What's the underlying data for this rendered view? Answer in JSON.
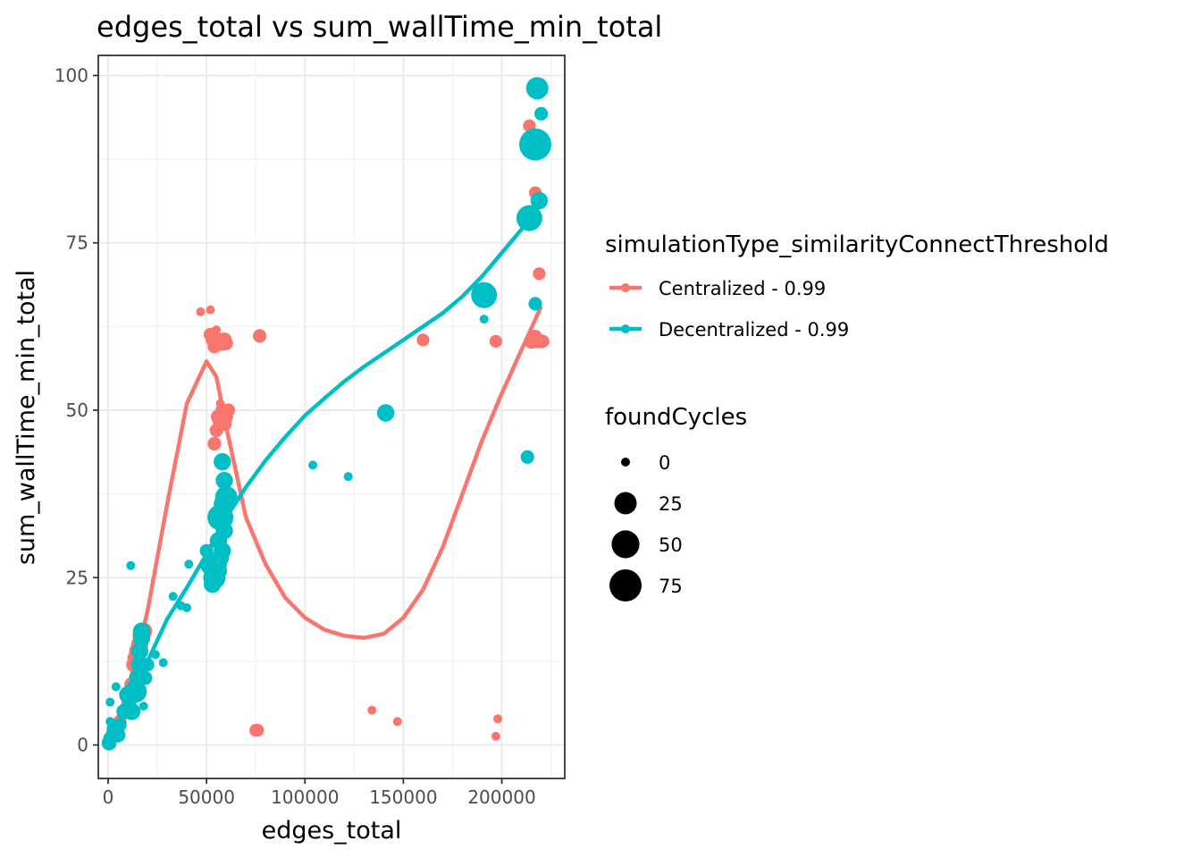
{
  "chart_data": {
    "type": "scatter",
    "title": "edges_total  vs  sum_wallTime_min_total",
    "xlabel": "edges_total",
    "ylabel": "sum_wallTime_min_total",
    "xlim": [
      -5000,
      232000
    ],
    "ylim": [
      -5,
      103
    ],
    "x_ticks": [
      0,
      50000,
      100000,
      150000,
      200000
    ],
    "x_tick_labels": [
      "0",
      "50000",
      "100000",
      "150000",
      "200000"
    ],
    "y_ticks": [
      0,
      25,
      50,
      75,
      100
    ],
    "y_tick_labels": [
      "0",
      "25",
      "50",
      "75",
      "100"
    ],
    "grid": true,
    "legend_placement": "right",
    "color_legend": {
      "title": "simulationType_similarityConnectThreshold",
      "entries": [
        {
          "label": "Centralized - 0.99",
          "color": "#F8766D"
        },
        {
          "label": "Decentralized - 0.99",
          "color": "#00BFC4"
        }
      ]
    },
    "size_legend": {
      "title": "foundCycles",
      "entries": [
        {
          "label": "0",
          "value": 0
        },
        {
          "label": "25",
          "value": 25
        },
        {
          "label": "50",
          "value": 50
        },
        {
          "label": "75",
          "value": 75
        }
      ]
    },
    "series": [
      {
        "name": "Centralized - 0.99",
        "color": "#F8766D",
        "points": [
          [
            500,
            0.5,
            0
          ],
          [
            2000,
            1.5,
            2
          ],
          [
            4000,
            2.5,
            3
          ],
          [
            6000,
            3.5,
            3
          ],
          [
            8000,
            5,
            4
          ],
          [
            10000,
            7,
            4
          ],
          [
            12000,
            9,
            5
          ],
          [
            13000,
            12,
            5
          ],
          [
            14000,
            13,
            8
          ],
          [
            15000,
            14,
            10
          ],
          [
            16000,
            15,
            10
          ],
          [
            17000,
            16.5,
            12
          ],
          [
            18000,
            17,
            10
          ],
          [
            47000,
            64.7,
            0
          ],
          [
            52000,
            65,
            0
          ],
          [
            52000,
            61.3,
            3
          ],
          [
            53000,
            60.5,
            3
          ],
          [
            54000,
            59.5,
            3
          ],
          [
            55000,
            62,
            0
          ],
          [
            56000,
            60.5,
            5
          ],
          [
            58000,
            60,
            5
          ],
          [
            59000,
            60.5,
            5
          ],
          [
            60000,
            60,
            3
          ],
          [
            54000,
            45,
            3
          ],
          [
            55000,
            47,
            3
          ],
          [
            56000,
            49,
            5
          ],
          [
            57000,
            48,
            5
          ],
          [
            58000,
            50,
            3
          ],
          [
            59000,
            48,
            5
          ],
          [
            60000,
            49,
            3
          ],
          [
            61000,
            50,
            3
          ],
          [
            57000,
            51,
            0
          ],
          [
            77000,
            61.1,
            3
          ],
          [
            160000,
            60.5,
            2
          ],
          [
            197000,
            60.3,
            2
          ],
          [
            214000,
            92.5,
            2
          ],
          [
            217000,
            82.5,
            2
          ],
          [
            219000,
            70.4,
            2
          ],
          [
            215000,
            60.2,
            3
          ],
          [
            217000,
            61,
            3
          ],
          [
            218000,
            60.3,
            3
          ],
          [
            220000,
            60.3,
            3
          ],
          [
            221000,
            60.3,
            2
          ],
          [
            75000,
            2.2,
            2
          ],
          [
            76000,
            2.2,
            2
          ],
          [
            134000,
            5.2,
            0
          ],
          [
            147000,
            3.5,
            0
          ],
          [
            198000,
            3.9,
            0
          ],
          [
            197000,
            1.3,
            0
          ]
        ]
      },
      {
        "name": "Decentralized - 0.99",
        "color": "#00BFC4",
        "points": [
          [
            500,
            0.3,
            5
          ],
          [
            1000,
            1,
            3
          ],
          [
            1000,
            3.5,
            0
          ],
          [
            1500,
            2.5,
            0
          ],
          [
            1000,
            6.4,
            0
          ],
          [
            3000,
            2,
            5
          ],
          [
            4000,
            8.7,
            0
          ],
          [
            5000,
            1.5,
            5
          ],
          [
            6000,
            3,
            3
          ],
          [
            8000,
            5,
            5
          ],
          [
            10000,
            5.5,
            3
          ],
          [
            10000,
            7.5,
            10
          ],
          [
            12000,
            5,
            10
          ],
          [
            12000,
            7,
            3
          ],
          [
            11500,
            26.8,
            0
          ],
          [
            14000,
            8,
            25
          ],
          [
            15000,
            10,
            10
          ],
          [
            16000,
            12,
            10
          ],
          [
            16000,
            14,
            10
          ],
          [
            17000,
            16,
            10
          ],
          [
            17000,
            17,
            10
          ],
          [
            18000,
            5.8,
            0
          ],
          [
            19000,
            10,
            3
          ],
          [
            20000,
            12,
            3
          ],
          [
            24000,
            13.5,
            0
          ],
          [
            28000,
            12.3,
            0
          ],
          [
            33000,
            22.2,
            0
          ],
          [
            37000,
            20.8,
            0
          ],
          [
            40000,
            20.5,
            0
          ],
          [
            41000,
            27,
            0
          ],
          [
            50000,
            29,
            3
          ],
          [
            52000,
            27,
            20
          ],
          [
            53000,
            24,
            10
          ],
          [
            54000,
            25,
            25
          ],
          [
            55000,
            27,
            20
          ],
          [
            56000,
            26,
            10
          ],
          [
            57000,
            28,
            10
          ],
          [
            58000,
            29,
            10
          ],
          [
            59000,
            32,
            10
          ],
          [
            56000,
            30.5,
            10
          ],
          [
            57000,
            34,
            40
          ],
          [
            58000,
            36,
            10
          ],
          [
            59000,
            39.5,
            10
          ],
          [
            60000,
            37,
            25
          ],
          [
            58000,
            42.3,
            10
          ],
          [
            104000,
            41.8,
            0
          ],
          [
            122000,
            40.1,
            0
          ],
          [
            141000,
            49.6,
            10
          ],
          [
            191000,
            67.2,
            40
          ],
          [
            191000,
            63.6,
            0
          ],
          [
            213000,
            43,
            3
          ],
          [
            214000,
            78.7,
            40
          ],
          [
            217000,
            89.7,
            75
          ],
          [
            218000,
            98.1,
            25
          ],
          [
            219000,
            81.3,
            10
          ],
          [
            220000,
            94.3,
            3
          ],
          [
            217000,
            65.9,
            3
          ]
        ]
      }
    ],
    "smooth_curves": [
      {
        "name": "Centralized - 0.99",
        "color": "#F8766D",
        "points": [
          [
            0,
            0
          ],
          [
            10000,
            8
          ],
          [
            20000,
            20
          ],
          [
            30000,
            36
          ],
          [
            40000,
            51
          ],
          [
            50000,
            57.3
          ],
          [
            55000,
            55
          ],
          [
            60000,
            47.5
          ],
          [
            70000,
            34
          ],
          [
            80000,
            27
          ],
          [
            90000,
            22
          ],
          [
            100000,
            19
          ],
          [
            110000,
            17.2
          ],
          [
            120000,
            16.3
          ],
          [
            130000,
            16
          ],
          [
            140000,
            16.6
          ],
          [
            150000,
            19
          ],
          [
            160000,
            23.2
          ],
          [
            170000,
            29.5
          ],
          [
            180000,
            37.5
          ],
          [
            190000,
            45.5
          ],
          [
            200000,
            52.5
          ],
          [
            210000,
            59
          ],
          [
            220000,
            65.5
          ]
        ]
      },
      {
        "name": "Decentralized - 0.99",
        "color": "#00BFC4",
        "points": [
          [
            0,
            0
          ],
          [
            10000,
            5
          ],
          [
            20000,
            12.5
          ],
          [
            30000,
            18.8
          ],
          [
            40000,
            23.5
          ],
          [
            50000,
            28.5
          ],
          [
            60000,
            34
          ],
          [
            70000,
            38.5
          ],
          [
            80000,
            42.5
          ],
          [
            90000,
            46
          ],
          [
            100000,
            49.2
          ],
          [
            110000,
            51.8
          ],
          [
            120000,
            54.3
          ],
          [
            130000,
            56.5
          ],
          [
            140000,
            58.5
          ],
          [
            150000,
            60.5
          ],
          [
            160000,
            62.5
          ],
          [
            170000,
            64.5
          ],
          [
            180000,
            67
          ],
          [
            190000,
            70
          ],
          [
            200000,
            73.5
          ],
          [
            210000,
            77
          ],
          [
            220000,
            81
          ]
        ]
      }
    ]
  }
}
